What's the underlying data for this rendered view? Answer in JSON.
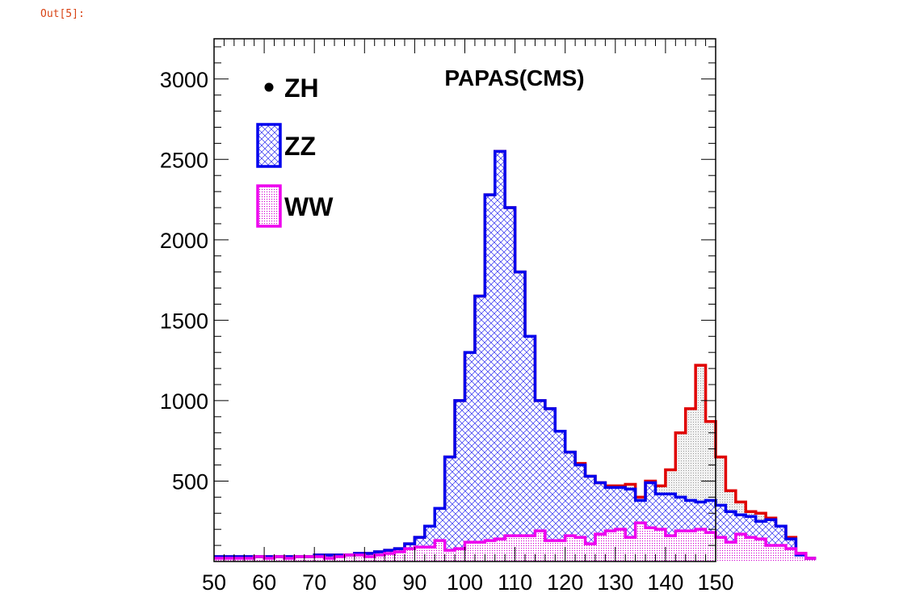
{
  "cell": {
    "prompt": "Out[5]:"
  },
  "chart_data": {
    "type": "histogram",
    "title": "PAPAS(CMS)",
    "xlabel": "",
    "ylabel": "",
    "xlim": [
      50,
      150
    ],
    "ylim": [
      0,
      3250
    ],
    "bin_start": 50,
    "bin_width": 2,
    "x_ticks": [
      50,
      60,
      70,
      80,
      90,
      100,
      110,
      120,
      130,
      140,
      150
    ],
    "x_tick_labels": [
      "50",
      "60",
      "70",
      "80",
      "90",
      "100",
      "110",
      "120",
      "130",
      "140",
      "150"
    ],
    "y_ticks": [
      500,
      1000,
      1500,
      2000,
      2500,
      3000
    ],
    "y_tick_labels": [
      "500",
      "1000",
      "1500",
      "2000",
      "2500",
      "3000"
    ],
    "legend": [
      {
        "name": "ZH",
        "marker": "dot"
      },
      {
        "name": "ZZ",
        "marker": "hatched-box"
      },
      {
        "name": "WW",
        "marker": "dotted-box"
      }
    ],
    "colors": {
      "ZH": "#e00000",
      "ZZ": "#0000ee",
      "WW": "#ee00ee"
    },
    "series": [
      {
        "name": "WW",
        "stack": "bottom",
        "values": [
          20,
          20,
          20,
          20,
          30,
          20,
          30,
          20,
          30,
          30,
          30,
          20,
          30,
          40,
          40,
          30,
          40,
          50,
          60,
          80,
          90,
          90,
          130,
          70,
          80,
          120,
          120,
          130,
          140,
          160,
          160,
          160,
          190,
          130,
          130,
          160,
          150,
          110,
          170,
          190,
          200,
          150,
          240,
          210,
          200,
          160,
          190,
          190,
          200,
          180,
          150,
          120,
          170,
          150,
          140,
          100,
          100,
          80,
          50,
          20
        ]
      },
      {
        "name": "ZZ",
        "stack": "total",
        "values": [
          30,
          30,
          30,
          30,
          30,
          30,
          30,
          30,
          30,
          30,
          40,
          40,
          40,
          40,
          50,
          50,
          60,
          70,
          80,
          110,
          150,
          220,
          330,
          650,
          1000,
          1300,
          1650,
          2280,
          2550,
          2200,
          1800,
          1400,
          1000,
          950,
          810,
          680,
          600,
          530,
          490,
          460,
          460,
          450,
          380,
          490,
          420,
          420,
          400,
          380,
          370,
          380,
          350,
          310,
          290,
          280,
          250,
          260,
          220,
          140,
          40,
          20
        ]
      },
      {
        "name": "ZH",
        "stack": "total",
        "values": [
          30,
          30,
          30,
          30,
          30,
          30,
          30,
          30,
          30,
          30,
          40,
          40,
          40,
          40,
          50,
          50,
          60,
          70,
          80,
          110,
          150,
          220,
          330,
          650,
          1000,
          1300,
          1650,
          2280,
          2550,
          2200,
          1800,
          1400,
          1000,
          950,
          810,
          680,
          610,
          530,
          490,
          470,
          470,
          480,
          400,
          500,
          470,
          570,
          800,
          950,
          1220,
          870,
          650,
          440,
          370,
          310,
          300,
          270,
          220,
          150,
          50,
          20
        ]
      }
    ]
  }
}
